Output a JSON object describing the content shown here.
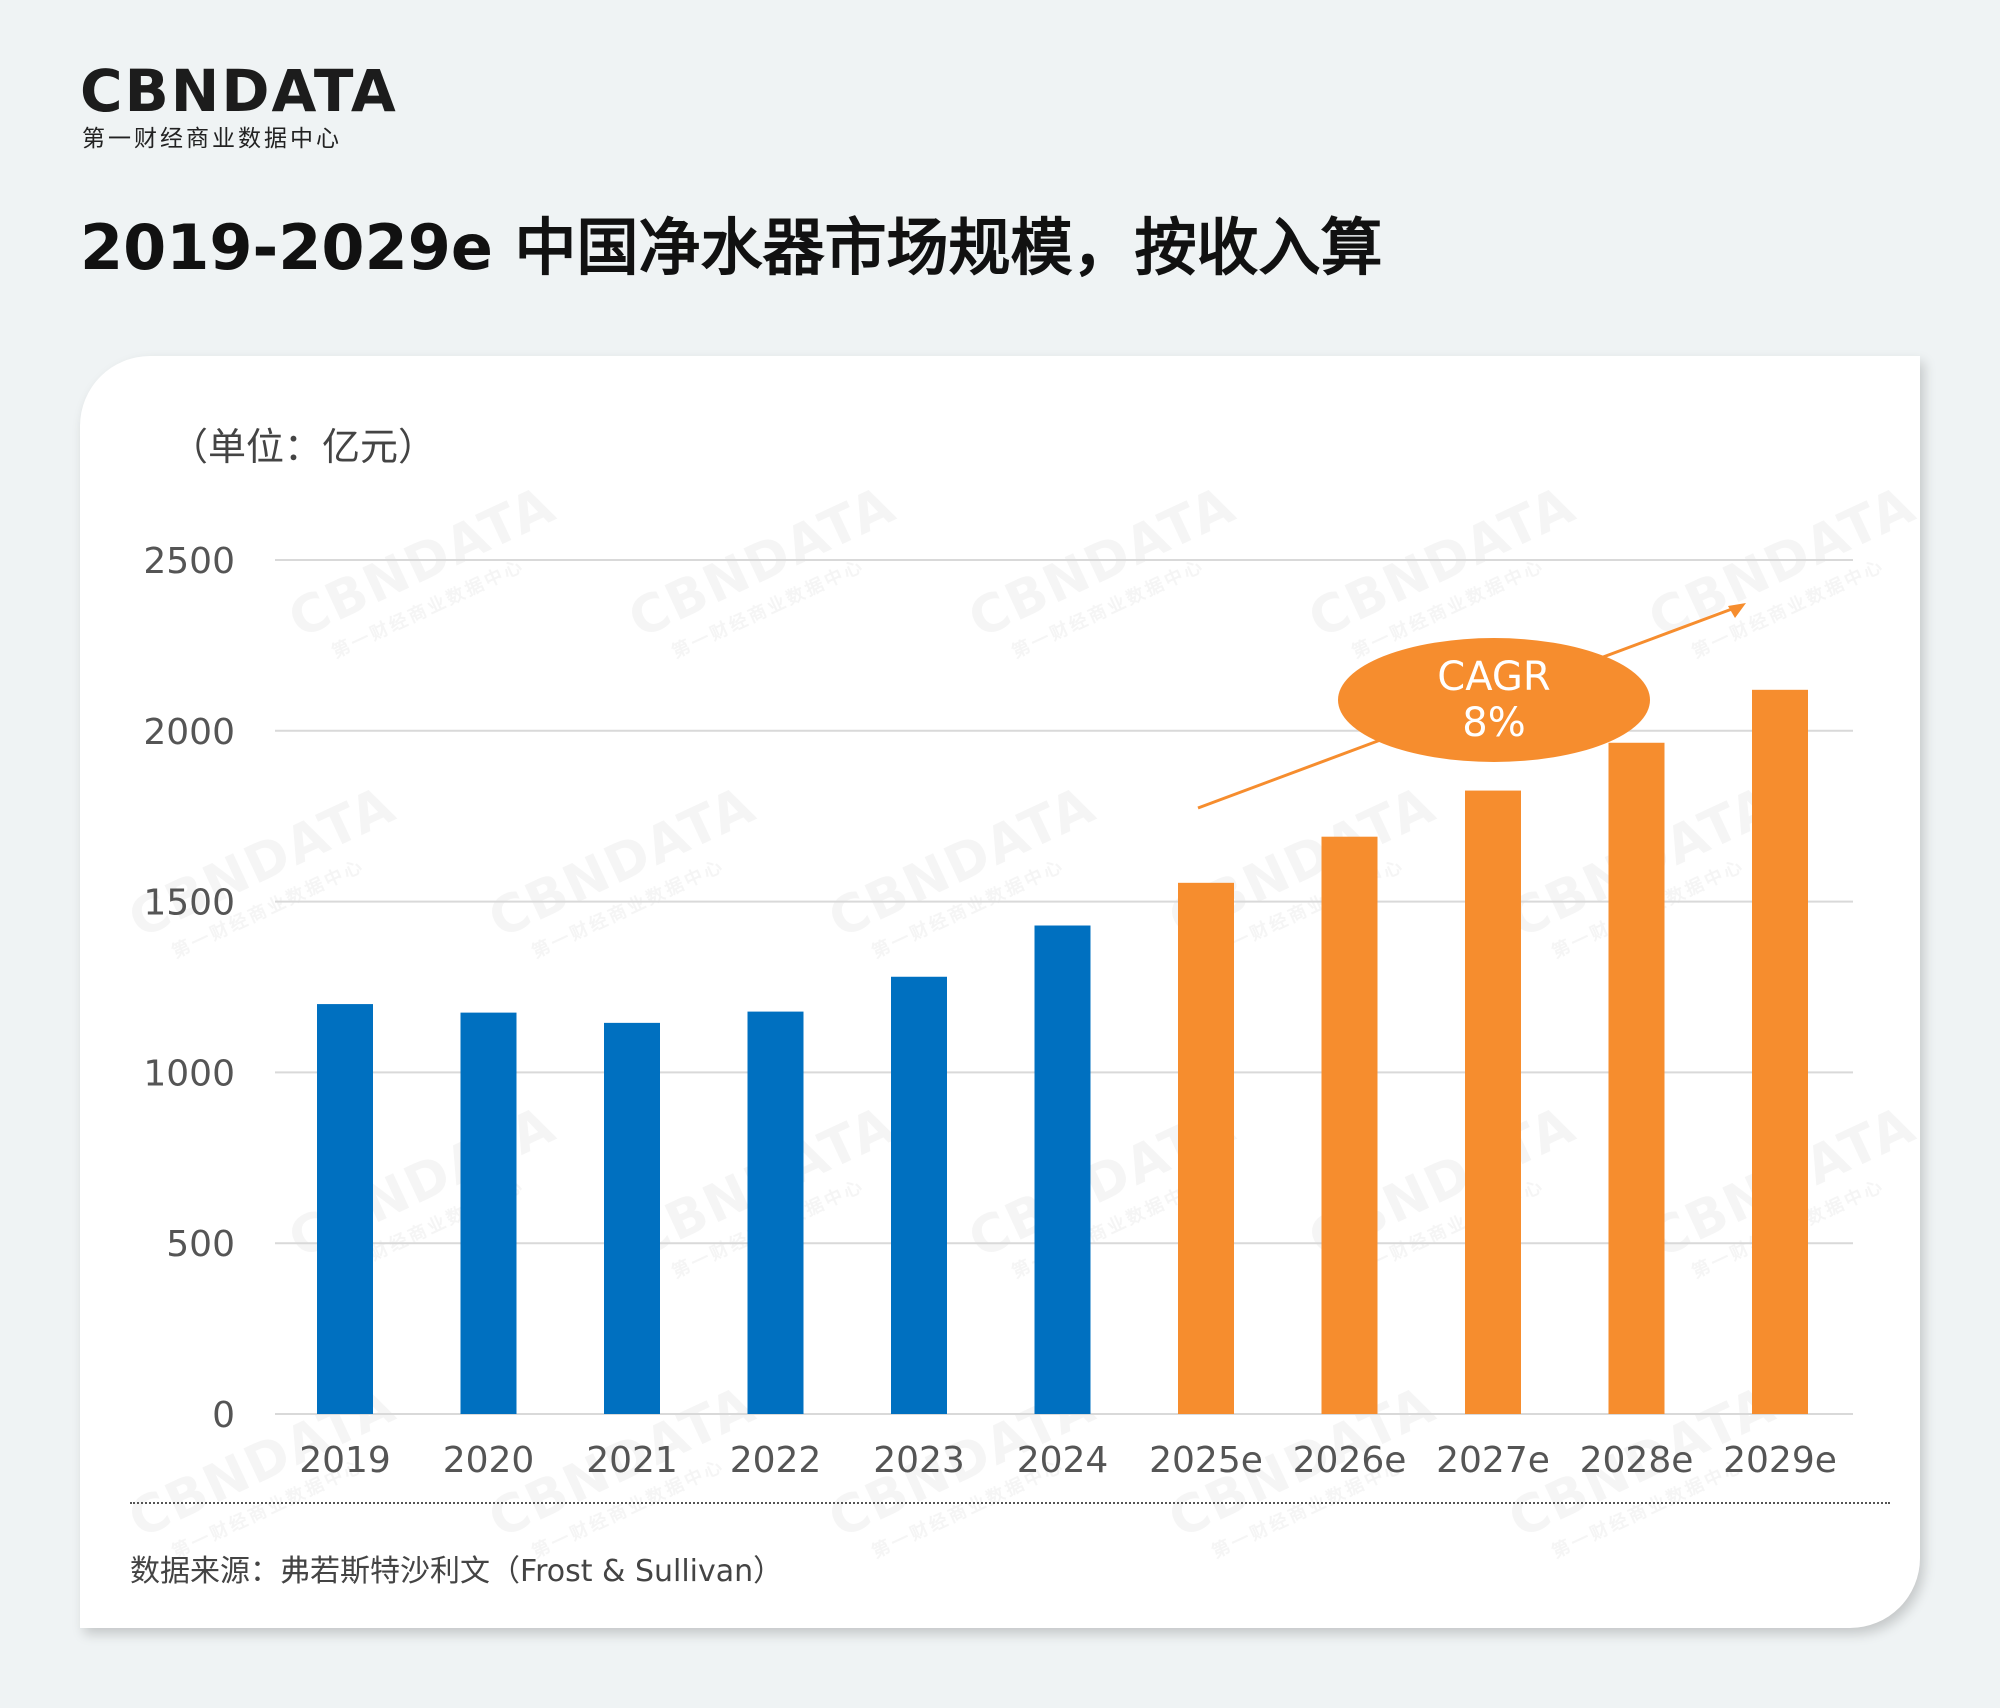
{
  "brand": {
    "logo_text": "CBNDATA",
    "logo_subtitle": "第一财经商业数据中心"
  },
  "title": "2019-2029e 中国净水器市场规模，按收入算",
  "unit_label": "（单位：亿元）",
  "source_text": "数据来源：弗若斯特沙利文（Frost & Sullivan）",
  "cagr": {
    "label": "CAGR",
    "value": "8%"
  },
  "colors": {
    "actual": "#0070c0",
    "forecast": "#f68d2e",
    "grid": "#d9d9d9",
    "axis_text": "#555555"
  },
  "chart_data": {
    "type": "bar",
    "title": "2019-2029e 中国净水器市场规模，按收入算",
    "ylabel": "（单位：亿元）",
    "xlabel": "",
    "categories": [
      "2019",
      "2020",
      "2021",
      "2022",
      "2023",
      "2024",
      "2025e",
      "2026e",
      "2027e",
      "2028e",
      "2029e"
    ],
    "values": [
      1200,
      1175,
      1145,
      1178,
      1280,
      1430,
      1555,
      1690,
      1825,
      1965,
      2120
    ],
    "series_type": [
      "actual",
      "actual",
      "actual",
      "actual",
      "actual",
      "actual",
      "forecast",
      "forecast",
      "forecast",
      "forecast",
      "forecast"
    ],
    "ylim": [
      0,
      2500
    ],
    "yticks": [
      0,
      500,
      1000,
      1500,
      2000,
      2500
    ],
    "grid": true,
    "annotation": "CAGR 8%"
  }
}
